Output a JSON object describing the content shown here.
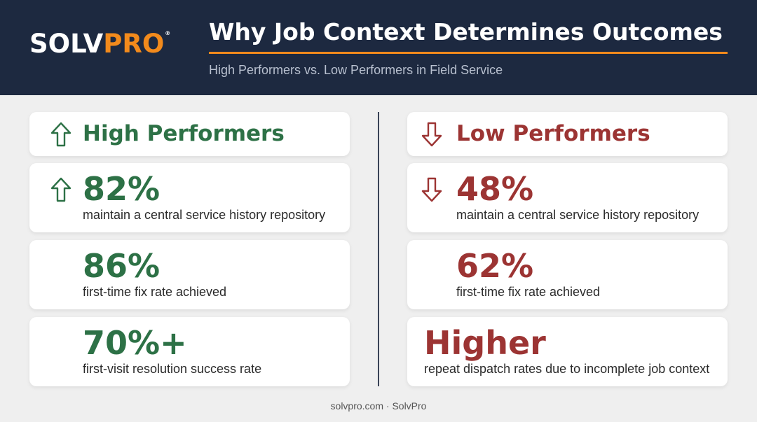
{
  "brand": {
    "logo_main": "SOLV",
    "logo_accent": "PRO",
    "logo_mark": "®",
    "accent_color": "#f28a1c"
  },
  "header": {
    "title": "Why Job Context Determines Outcomes",
    "subtitle": "High Performers vs. Low Performers in Field Service",
    "background": "#1d2940"
  },
  "high": {
    "heading": "High Performers",
    "color": "#2d7146",
    "icon": "arrow-up-icon",
    "stats": [
      {
        "value": "82%",
        "description": "maintain a central service history repository"
      },
      {
        "value": "86%",
        "description": "first-time fix rate achieved"
      },
      {
        "value": "70%+",
        "description": "first-visit resolution success rate"
      }
    ]
  },
  "low": {
    "heading": "Low Performers",
    "color": "#9c3433",
    "icon": "arrow-down-icon",
    "stats": [
      {
        "value": "48%",
        "description": "maintain a central service history repository"
      },
      {
        "value": "62%",
        "description": "first-time fix rate achieved"
      },
      {
        "value": "Higher",
        "description": "repeat dispatch rates due to incomplete job context"
      }
    ]
  },
  "footer": {
    "text": "solvpro.com · SolvPro"
  }
}
